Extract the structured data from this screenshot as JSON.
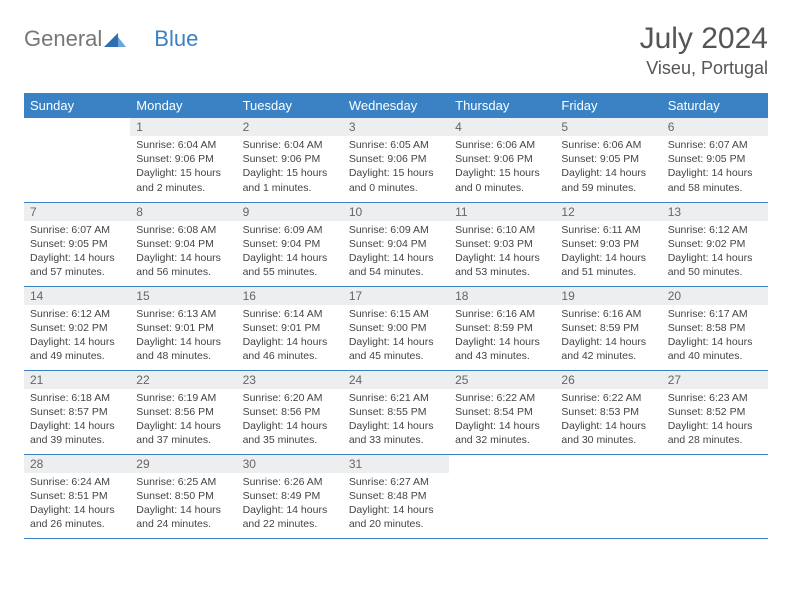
{
  "logo": {
    "part1": "General",
    "part2": "Blue"
  },
  "title": "July 2024",
  "location": "Viseu, Portugal",
  "colors": {
    "header_bg": "#3a82c4",
    "header_text": "#ffffff",
    "daynum_bg": "#eceeef",
    "text": "#444444",
    "rule": "#3a82c4"
  },
  "typography": {
    "title_fontsize": 30,
    "location_fontsize": 18,
    "dayheader_fontsize": 13,
    "cell_fontsize": 10.5
  },
  "day_headers": [
    "Sunday",
    "Monday",
    "Tuesday",
    "Wednesday",
    "Thursday",
    "Friday",
    "Saturday"
  ],
  "weeks": [
    [
      null,
      {
        "n": "1",
        "sr": "Sunrise: 6:04 AM",
        "ss": "Sunset: 9:06 PM",
        "d1": "Daylight: 15 hours",
        "d2": "and 2 minutes."
      },
      {
        "n": "2",
        "sr": "Sunrise: 6:04 AM",
        "ss": "Sunset: 9:06 PM",
        "d1": "Daylight: 15 hours",
        "d2": "and 1 minutes."
      },
      {
        "n": "3",
        "sr": "Sunrise: 6:05 AM",
        "ss": "Sunset: 9:06 PM",
        "d1": "Daylight: 15 hours",
        "d2": "and 0 minutes."
      },
      {
        "n": "4",
        "sr": "Sunrise: 6:06 AM",
        "ss": "Sunset: 9:06 PM",
        "d1": "Daylight: 15 hours",
        "d2": "and 0 minutes."
      },
      {
        "n": "5",
        "sr": "Sunrise: 6:06 AM",
        "ss": "Sunset: 9:05 PM",
        "d1": "Daylight: 14 hours",
        "d2": "and 59 minutes."
      },
      {
        "n": "6",
        "sr": "Sunrise: 6:07 AM",
        "ss": "Sunset: 9:05 PM",
        "d1": "Daylight: 14 hours",
        "d2": "and 58 minutes."
      }
    ],
    [
      {
        "n": "7",
        "sr": "Sunrise: 6:07 AM",
        "ss": "Sunset: 9:05 PM",
        "d1": "Daylight: 14 hours",
        "d2": "and 57 minutes."
      },
      {
        "n": "8",
        "sr": "Sunrise: 6:08 AM",
        "ss": "Sunset: 9:04 PM",
        "d1": "Daylight: 14 hours",
        "d2": "and 56 minutes."
      },
      {
        "n": "9",
        "sr": "Sunrise: 6:09 AM",
        "ss": "Sunset: 9:04 PM",
        "d1": "Daylight: 14 hours",
        "d2": "and 55 minutes."
      },
      {
        "n": "10",
        "sr": "Sunrise: 6:09 AM",
        "ss": "Sunset: 9:04 PM",
        "d1": "Daylight: 14 hours",
        "d2": "and 54 minutes."
      },
      {
        "n": "11",
        "sr": "Sunrise: 6:10 AM",
        "ss": "Sunset: 9:03 PM",
        "d1": "Daylight: 14 hours",
        "d2": "and 53 minutes."
      },
      {
        "n": "12",
        "sr": "Sunrise: 6:11 AM",
        "ss": "Sunset: 9:03 PM",
        "d1": "Daylight: 14 hours",
        "d2": "and 51 minutes."
      },
      {
        "n": "13",
        "sr": "Sunrise: 6:12 AM",
        "ss": "Sunset: 9:02 PM",
        "d1": "Daylight: 14 hours",
        "d2": "and 50 minutes."
      }
    ],
    [
      {
        "n": "14",
        "sr": "Sunrise: 6:12 AM",
        "ss": "Sunset: 9:02 PM",
        "d1": "Daylight: 14 hours",
        "d2": "and 49 minutes."
      },
      {
        "n": "15",
        "sr": "Sunrise: 6:13 AM",
        "ss": "Sunset: 9:01 PM",
        "d1": "Daylight: 14 hours",
        "d2": "and 48 minutes."
      },
      {
        "n": "16",
        "sr": "Sunrise: 6:14 AM",
        "ss": "Sunset: 9:01 PM",
        "d1": "Daylight: 14 hours",
        "d2": "and 46 minutes."
      },
      {
        "n": "17",
        "sr": "Sunrise: 6:15 AM",
        "ss": "Sunset: 9:00 PM",
        "d1": "Daylight: 14 hours",
        "d2": "and 45 minutes."
      },
      {
        "n": "18",
        "sr": "Sunrise: 6:16 AM",
        "ss": "Sunset: 8:59 PM",
        "d1": "Daylight: 14 hours",
        "d2": "and 43 minutes."
      },
      {
        "n": "19",
        "sr": "Sunrise: 6:16 AM",
        "ss": "Sunset: 8:59 PM",
        "d1": "Daylight: 14 hours",
        "d2": "and 42 minutes."
      },
      {
        "n": "20",
        "sr": "Sunrise: 6:17 AM",
        "ss": "Sunset: 8:58 PM",
        "d1": "Daylight: 14 hours",
        "d2": "and 40 minutes."
      }
    ],
    [
      {
        "n": "21",
        "sr": "Sunrise: 6:18 AM",
        "ss": "Sunset: 8:57 PM",
        "d1": "Daylight: 14 hours",
        "d2": "and 39 minutes."
      },
      {
        "n": "22",
        "sr": "Sunrise: 6:19 AM",
        "ss": "Sunset: 8:56 PM",
        "d1": "Daylight: 14 hours",
        "d2": "and 37 minutes."
      },
      {
        "n": "23",
        "sr": "Sunrise: 6:20 AM",
        "ss": "Sunset: 8:56 PM",
        "d1": "Daylight: 14 hours",
        "d2": "and 35 minutes."
      },
      {
        "n": "24",
        "sr": "Sunrise: 6:21 AM",
        "ss": "Sunset: 8:55 PM",
        "d1": "Daylight: 14 hours",
        "d2": "and 33 minutes."
      },
      {
        "n": "25",
        "sr": "Sunrise: 6:22 AM",
        "ss": "Sunset: 8:54 PM",
        "d1": "Daylight: 14 hours",
        "d2": "and 32 minutes."
      },
      {
        "n": "26",
        "sr": "Sunrise: 6:22 AM",
        "ss": "Sunset: 8:53 PM",
        "d1": "Daylight: 14 hours",
        "d2": "and 30 minutes."
      },
      {
        "n": "27",
        "sr": "Sunrise: 6:23 AM",
        "ss": "Sunset: 8:52 PM",
        "d1": "Daylight: 14 hours",
        "d2": "and 28 minutes."
      }
    ],
    [
      {
        "n": "28",
        "sr": "Sunrise: 6:24 AM",
        "ss": "Sunset: 8:51 PM",
        "d1": "Daylight: 14 hours",
        "d2": "and 26 minutes."
      },
      {
        "n": "29",
        "sr": "Sunrise: 6:25 AM",
        "ss": "Sunset: 8:50 PM",
        "d1": "Daylight: 14 hours",
        "d2": "and 24 minutes."
      },
      {
        "n": "30",
        "sr": "Sunrise: 6:26 AM",
        "ss": "Sunset: 8:49 PM",
        "d1": "Daylight: 14 hours",
        "d2": "and 22 minutes."
      },
      {
        "n": "31",
        "sr": "Sunrise: 6:27 AM",
        "ss": "Sunset: 8:48 PM",
        "d1": "Daylight: 14 hours",
        "d2": "and 20 minutes."
      },
      null,
      null,
      null
    ]
  ]
}
